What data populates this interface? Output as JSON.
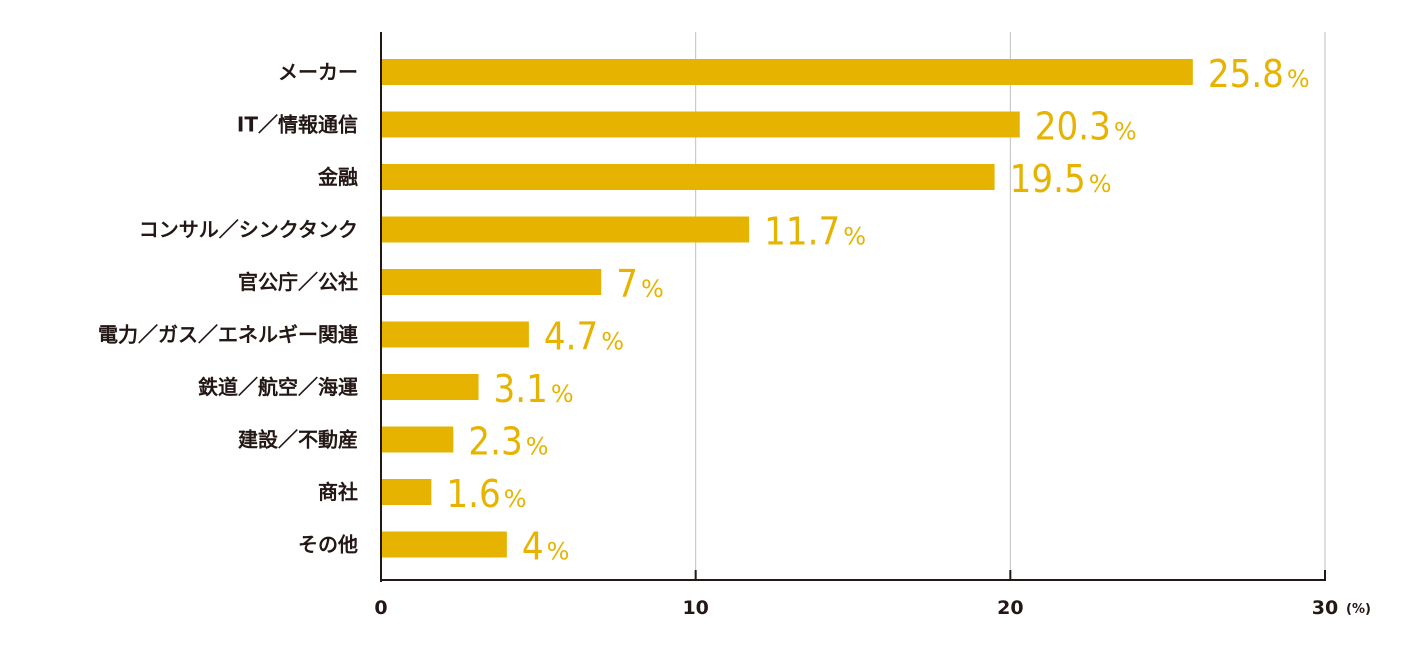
{
  "chart_data": {
    "type": "bar",
    "orientation": "horizontal",
    "categories": [
      "メーカー",
      "IT／情報通信",
      "金融",
      "コンサル／シンクタンク",
      "官公庁／公社",
      "電力／ガス／エネルギー関連",
      "鉄道／航空／海運",
      "建設／不動産",
      "商社",
      "その他"
    ],
    "values": [
      25.8,
      20.3,
      19.5,
      11.7,
      7,
      4.7,
      3.1,
      2.3,
      1.6,
      4
    ],
    "value_labels": [
      "25.8",
      "20.3",
      "19.5",
      "11.7",
      "7",
      "4.7",
      "3.1",
      "2.3",
      "1.6",
      "4"
    ],
    "value_suffix": "%",
    "x_ticks": [
      "0",
      "10",
      "20",
      "30"
    ],
    "x_unit": "(%)",
    "xlim": [
      0,
      30
    ],
    "grid": true,
    "legend": "none",
    "colors": {
      "bar": "#E6B400",
      "value_text": "#E6B400",
      "axis": "#231815",
      "grid": "#BFBFBF",
      "label_text": "#231815"
    }
  }
}
